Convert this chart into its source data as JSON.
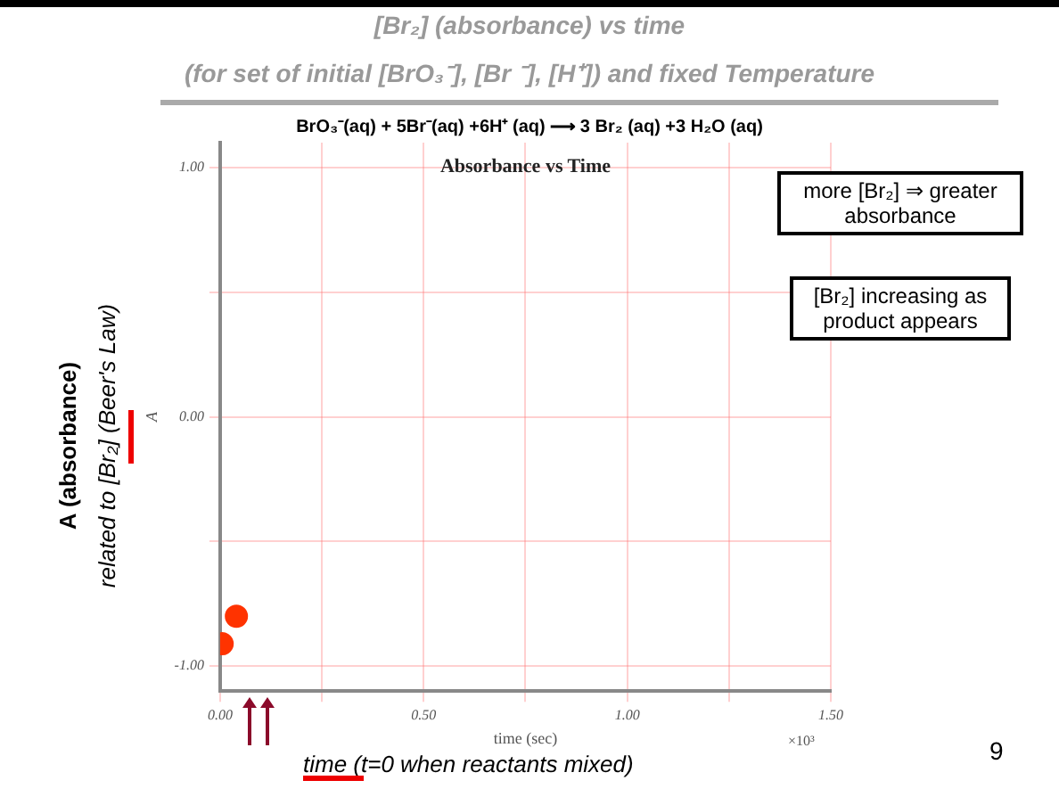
{
  "chart_data": {
    "type": "scatter",
    "title": "Absorbance vs Time",
    "xlabel": "time (sec)",
    "ylabel": "A",
    "x": [
      0.005,
      0.04
    ],
    "series": [
      {
        "color": "#ff3300",
        "values": [
          -0.91,
          -0.8
        ]
      }
    ],
    "xlim": [
      0,
      1.5
    ],
    "ylim": [
      -1.1,
      1.1
    ],
    "xticks": [
      {
        "value": 0,
        "label": "0.00"
      },
      {
        "value": 0.25,
        "label": null
      },
      {
        "value": 0.5,
        "label": "0.50"
      },
      {
        "value": 0.75,
        "label": null
      },
      {
        "value": 1,
        "label": "1.00"
      },
      {
        "value": 1.25,
        "label": null
      },
      {
        "value": 1.5,
        "label": "1.50"
      }
    ],
    "yticks": [
      {
        "value": -1,
        "label": "-1.00"
      },
      {
        "value": -0.5,
        "label": null
      },
      {
        "value": 0,
        "label": "0.00"
      },
      {
        "value": 0.5,
        "label": null
      },
      {
        "value": 1,
        "label": "1.00"
      }
    ],
    "grid": true,
    "marker": "circle",
    "legend": false,
    "annotations": [
      "[Br₂]  (absorbance)  vs time",
      "(for set of initial [BrO₃⁻], [Br ⁻], [H⁺]) and fixed Temperature",
      "BrO₃⁻(aq) + 5Br⁻(aq) +6H⁺ (aq)  ⟶   3 Br₂ (aq) +3 H₂O (aq)",
      "more [Br₂] ⇒ greater absorbance",
      "[Br₂] increasing as product appears",
      "A (absorbance)",
      "related to [Br₂] (Beer's Law)",
      "time (t=0 when reactants mixed)",
      "×10³",
      "9"
    ]
  }
}
